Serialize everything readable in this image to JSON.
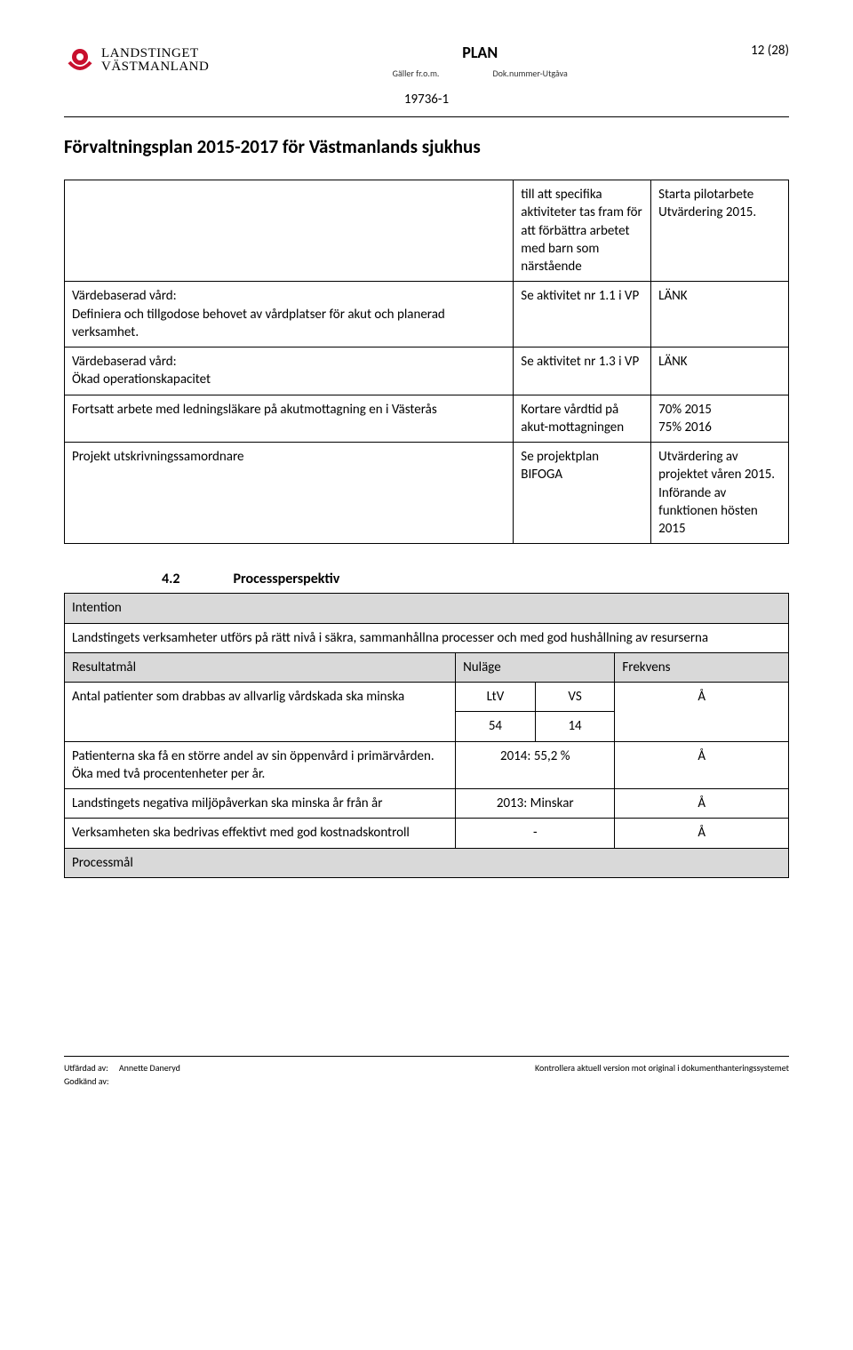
{
  "header": {
    "logo_line1": "LANDSTINGET",
    "logo_line2": "VÄSTMANLAND",
    "plan_label": "PLAN",
    "galler": "Gäller fr.o.m.",
    "dok": "Dok.nummer-Utgåva",
    "page_indicator": "12 (28)",
    "doc_number": "19736-1"
  },
  "title": "Förvaltningsplan 2015-2017 för Västmanlands sjukhus",
  "table1": {
    "rows": [
      {
        "a": "",
        "b": "till att specifika aktiviteter tas fram för att förbättra arbetet med barn som närstående",
        "c": "Starta pilotarbete\nUtvärdering 2015."
      },
      {
        "a": "Värdebaserad vård:\nDefiniera och tillgodose behovet av vårdplatser för akut och planerad verksamhet.",
        "b": "Se aktivitet nr 1.1 i VP",
        "c": "LÄNK"
      },
      {
        "a": "Värdebaserad vård:\nÖkad operationskapacitet",
        "b": "Se aktivitet nr 1.3 i VP",
        "c": "LÄNK"
      },
      {
        "a": "Fortsatt arbete med ledningsläkare på akutmottagning en i Västerås",
        "b": "Kortare vårdtid på akut-mottagningen",
        "c": "70% 2015\n75% 2016"
      },
      {
        "a": "Projekt utskrivningssamordnare",
        "b": "Se projektplan\nBIFOGA",
        "c": "Utvärdering av projektet våren 2015. Införande av funktionen hösten 2015"
      }
    ]
  },
  "section": {
    "num": "4.2",
    "title": "Processperspektiv"
  },
  "table2": {
    "intention_label": "Intention",
    "intention_text": "Landstingets verksamheter utförs på rätt nivå i säkra, sammanhållna processer och med god hushållning av resurserna",
    "head_resultatmal": "Resultatmål",
    "head_nulage": "Nuläge",
    "head_frekvens": "Frekvens",
    "ltv": "LtV",
    "vs": "VS",
    "a_freq": "Å",
    "row1_text": "Antal patienter som drabbas av allvarlig vårdskada ska minska",
    "row1_ltv_val": "54",
    "row1_vs_val": "14",
    "row2_text": "Patienterna ska få en större andel av sin öppenvård i primärvården. Öka med två procentenheter per år.",
    "row2_val": "2014: 55,2 %",
    "row3_text": "Landstingets negativa miljöpåverkan ska minska år från år",
    "row3_val": "2013: Minskar",
    "row4_text": "Verksamheten ska bedrivas effektivt med god kostnadskontroll",
    "row4_val": "-",
    "processmal": "Processmål"
  },
  "footer": {
    "utfardad_label": "Utfärdad av:",
    "utfardad_name": "Annette Daneryd",
    "godkand_label": "Godkänd av:",
    "right": "Kontrollera aktuell version mot original i dokumenthanteringssystemet"
  }
}
